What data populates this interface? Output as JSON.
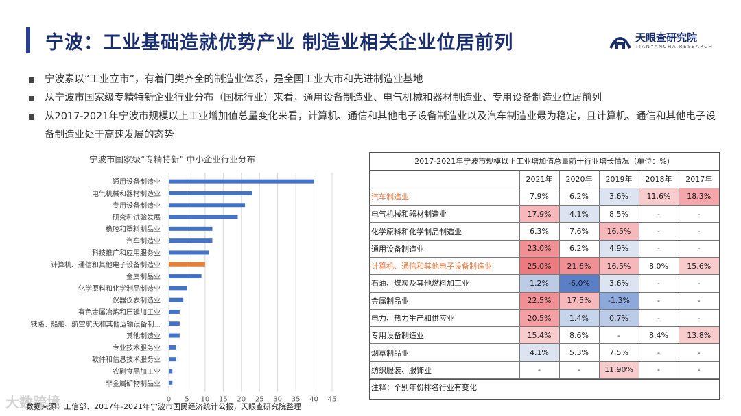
{
  "title": "宁波：工业基础造就优势产业 制造业相关企业位居前列",
  "logo": {
    "name": "天眼查研究院",
    "sub": "TIANYANCHA RESEARCH"
  },
  "bullets": [
    "宁波素以“工业立市”，有着门类齐全的制造业体系，是全国工业大市和先进制造业基地",
    "从宁波市国家级专精特新企业行业分布（国标行业）来看，通用设备制造业、电气机械和器材制造业、专用设备制造业位居前列",
    "从2017-2021年宁波市规模以上工业增加值总量变化来看，计算机、通信和其他电子设备制造业以及汽车制造业最为稳定，且计算机、通信和其他电子设备制造业处于高速发展的态势"
  ],
  "chart_data": {
    "type": "bar",
    "orientation": "horizontal",
    "title": "宁波市国家级“专精特新” 中小企业行业分布",
    "categories": [
      "通用设备制造业",
      "电气机械和器材制造业",
      "专用设备制造业",
      "研究和试验发展",
      "橡胶和塑料制品业",
      "汽车制造业",
      "科技推广和应用服务业",
      "计算机、通信和其他电子设备制造业",
      "金属制品业",
      "化学原料和化学制品制造业",
      "仪器仪表制造业",
      "有色金属冶炼和压延加工业",
      "铁路、船舶、航空航天和其他运输设备制...",
      "其他制造业",
      "专业技术服务业",
      "软件和信息技术服务业",
      "农副食品加工业",
      "非金属矿物制品业"
    ],
    "values": [
      40,
      23,
      21,
      19,
      12,
      12,
      11,
      10,
      9,
      5,
      4,
      3,
      3,
      3,
      2,
      2,
      1,
      1
    ],
    "highlight_index": 7,
    "xlim": [
      0,
      45
    ],
    "xticks": [
      0,
      5,
      10,
      15,
      20,
      25,
      30,
      35,
      40,
      45
    ],
    "colors": {
      "bar": "#4472c4",
      "highlight": "#ed7d31",
      "grid": "#d9d9d9"
    }
  },
  "table": {
    "title": "2017-2021年宁波市规模以上工业增加值总量前十行业增长情况（单位：%）",
    "years": [
      "2021年",
      "2020年",
      "2019年",
      "2018年",
      "2017年"
    ],
    "rows": [
      {
        "name": "汽车制造业",
        "hl": true,
        "values": [
          "7.9%",
          "6.2%",
          "3.6%",
          "11.6%",
          "18.3%"
        ],
        "colors": [
          "#ffffff",
          "#ffffff",
          "#dce4f1",
          "#f8cbcd",
          "#f4a6aa"
        ]
      },
      {
        "name": "电气机械和器材制造业",
        "hl": false,
        "values": [
          "17.9%",
          "4.1%",
          "8.5%",
          "-",
          "-"
        ],
        "colors": [
          "#f6b8bb",
          "#dce4f1",
          "#ffffff",
          "#ffffff",
          "#ffffff"
        ]
      },
      {
        "name": "化学原料和化学制品制造业",
        "hl": false,
        "values": [
          "6.3%",
          "7.6%",
          "16.5%",
          "-",
          "-"
        ],
        "colors": [
          "#ffffff",
          "#ffffff",
          "#f6b8bb",
          "#ffffff",
          "#ffffff"
        ]
      },
      {
        "name": "通用设备制造业",
        "hl": false,
        "values": [
          "23.0%",
          "6.2%",
          "4.9%",
          "-",
          "-"
        ],
        "colors": [
          "#f09094",
          "#ffffff",
          "#dce4f1",
          "#ffffff",
          "#ffffff"
        ]
      },
      {
        "name": "计算机、通信和其他电子设备制造业",
        "hl": true,
        "values": [
          "25.0%",
          "21.6%",
          "16.5%",
          "8.0%",
          "15.6%"
        ],
        "colors": [
          "#ec7b80",
          "#f09094",
          "#f6b8bb",
          "#ffffff",
          "#f8cbcd"
        ]
      },
      {
        "name": "石油、煤炭及其他燃料加工业",
        "hl": false,
        "values": [
          "1.2%",
          "-6.0%",
          "3.6%",
          "-",
          "-"
        ],
        "colors": [
          "#bccbe6",
          "#5b7fc7",
          "#dce4f1",
          "#ffffff",
          "#ffffff"
        ]
      },
      {
        "name": "金属制品业",
        "hl": false,
        "values": [
          "22.5%",
          "17.5%",
          "-1.3%",
          "-",
          "-"
        ],
        "colors": [
          "#f09094",
          "#f6b8bb",
          "#8da9db",
          "#ffffff",
          "#ffffff"
        ]
      },
      {
        "name": "电力、热力生产和供应业",
        "hl": false,
        "values": [
          "20.5%",
          "1.4%",
          "0.7%",
          "-",
          "-"
        ],
        "colors": [
          "#f2a0a4",
          "#c6d4ec",
          "#bccbe6",
          "#ffffff",
          "#ffffff"
        ]
      },
      {
        "name": "专用设备制造业",
        "hl": false,
        "values": [
          "15.4%",
          "8.6%",
          "-",
          "8.4%",
          "13.8%"
        ],
        "colors": [
          "#f8cbcd",
          "#ffffff",
          "#ffffff",
          "#ffffff",
          "#f8cbcd"
        ]
      },
      {
        "name": "烟草制品业",
        "hl": false,
        "values": [
          "4.1%",
          "5.3%",
          "7.5%",
          "-",
          "-"
        ],
        "colors": [
          "#dce4f1",
          "#ffffff",
          "#ffffff",
          "#ffffff",
          "#ffffff"
        ]
      },
      {
        "name": "纺织服装、服饰业",
        "hl": false,
        "values": [
          "-",
          "-",
          "11.90%",
          "-",
          "-"
        ],
        "colors": [
          "#ffffff",
          "#ffffff",
          "#f8cbcd",
          "#ffffff",
          "#ffffff"
        ]
      }
    ],
    "note": "注释：个别年份排名行业有变化"
  },
  "footnote": "数据来源：工信部、2017年-2021年宁波市国民经济统计公报，天眼查研究院整理",
  "watermark": "大数跨境"
}
